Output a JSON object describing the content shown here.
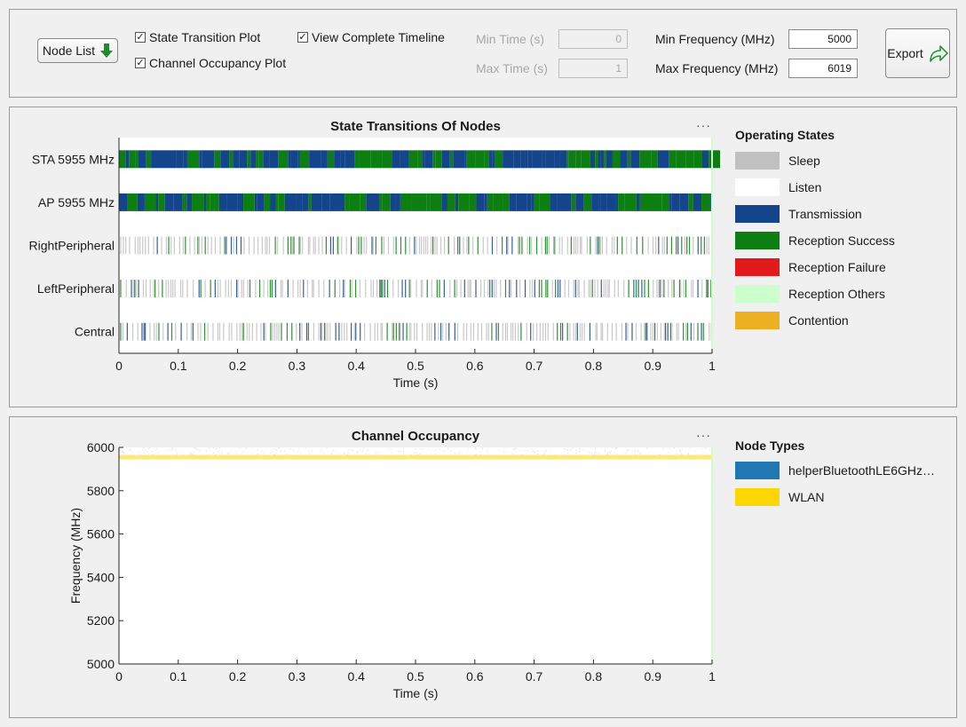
{
  "toolbar": {
    "node_list_label": "Node List",
    "state_transition_label": "State Transition Plot",
    "state_transition_checked": true,
    "channel_occupancy_label": "Channel Occupancy Plot",
    "channel_occupancy_checked": true,
    "complete_timeline_label": "View Complete Timeline",
    "complete_timeline_checked": true,
    "min_time_label": "Min Time (s)",
    "min_time_value": "0",
    "max_time_label": "Max Time (s)",
    "max_time_value": "1",
    "min_freq_label": "Min Frequency (MHz)",
    "min_freq_value": "5000",
    "max_freq_label": "Max Frequency (MHz)",
    "max_freq_value": "6019",
    "export_label": "Export"
  },
  "state_plot": {
    "title": "State Transitions Of Nodes",
    "more_label": "···",
    "legend_title": "Operating States",
    "legend": [
      {
        "label": "Sleep",
        "color": "#c0c0c0"
      },
      {
        "label": "Listen",
        "color": "#ffffff"
      },
      {
        "label": "Transmission",
        "color": "#14448a"
      },
      {
        "label": "Reception Success",
        "color": "#0c7e12"
      },
      {
        "label": "Reception Failure",
        "color": "#e31a1c"
      },
      {
        "label": "Reception Others",
        "color": "#ccffcc"
      },
      {
        "label": "Contention",
        "color": "#ecb022"
      }
    ]
  },
  "occupancy_plot": {
    "title": "Channel Occupancy",
    "more_label": "···",
    "legend_title": "Node Types",
    "legend": [
      {
        "label": "helperBluetoothLE6GHz…",
        "color": "#1f77b4"
      },
      {
        "label": "WLAN",
        "color": "#ffd700"
      }
    ]
  },
  "chart_data": [
    {
      "type": "timeline",
      "title": "State Transitions Of Nodes",
      "xlabel": "Time (s)",
      "xlim": [
        0,
        1
      ],
      "xticks": [
        "0",
        "0.1",
        "0.2",
        "0.3",
        "0.4",
        "0.5",
        "0.6",
        "0.7",
        "0.8",
        "0.9",
        "1"
      ],
      "rows": [
        {
          "name": "STA 5955 MHz",
          "pattern": "dense",
          "states": [
            "Transmission",
            "Reception Success"
          ]
        },
        {
          "name": "AP 5955 MHz",
          "pattern": "dense",
          "states": [
            "Transmission",
            "Reception Success"
          ]
        },
        {
          "name": "RightPeripheral",
          "pattern": "sparse",
          "states": [
            "Sleep",
            "Reception Success",
            "Transmission"
          ]
        },
        {
          "name": "LeftPeripheral",
          "pattern": "sparse",
          "states": [
            "Sleep",
            "Reception Success",
            "Transmission"
          ]
        },
        {
          "name": "Central",
          "pattern": "sparse",
          "states": [
            "Sleep",
            "Transmission",
            "Reception Success"
          ]
        }
      ]
    },
    {
      "type": "area",
      "title": "Channel Occupancy",
      "xlabel": "Time (s)",
      "ylabel": "Frequency (MHz)",
      "xlim": [
        0,
        1
      ],
      "ylim": [
        5000,
        6000
      ],
      "xticks": [
        "0",
        "0.1",
        "0.2",
        "0.3",
        "0.4",
        "0.5",
        "0.6",
        "0.7",
        "0.8",
        "0.9",
        "1"
      ],
      "yticks": [
        "5000",
        "5200",
        "5400",
        "5600",
        "5800",
        "6000"
      ],
      "bands": [
        {
          "name": "WLAN",
          "fmin": 5945,
          "fmax": 5965,
          "t_start": 0,
          "t_end": 1
        }
      ]
    }
  ]
}
